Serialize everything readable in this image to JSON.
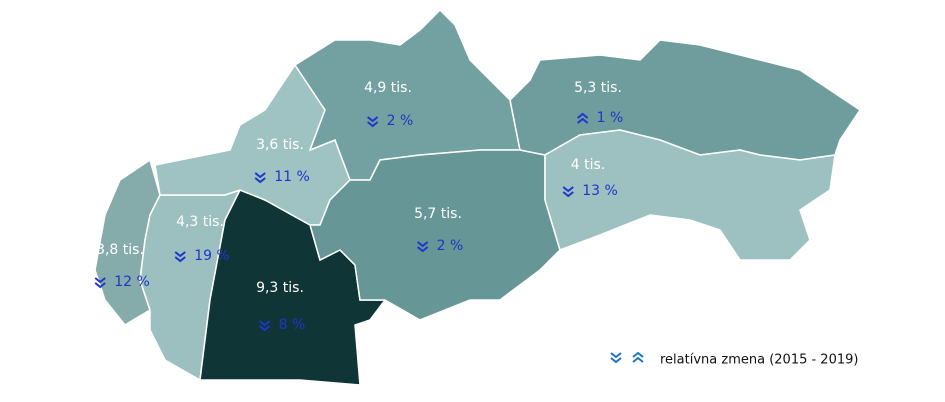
{
  "regions": [
    {
      "value": "3,8 tis.",
      "change": "12 %",
      "direction": "down",
      "color": "#86abab"
    },
    {
      "value": "4,3 tis.",
      "change": "19 %",
      "direction": "down",
      "color": "#9cbfbf"
    },
    {
      "value": "9,3 tis.",
      "change": "8 %",
      "direction": "down",
      "color": "#0f3536"
    },
    {
      "value": "3,6 tis.",
      "change": "11 %",
      "direction": "down",
      "color": "#9fc3c3"
    },
    {
      "value": "4,9 tis.",
      "change": "2 %",
      "direction": "down",
      "color": "#73a0a0"
    },
    {
      "value": "5,7 tis.",
      "change": "2 %",
      "direction": "down",
      "color": "#679696"
    },
    {
      "value": "5,3 tis.",
      "change": "1 %",
      "direction": "up",
      "color": "#6f9c9c"
    },
    {
      "value": "4 tis.",
      "change": "13 %",
      "direction": "down",
      "color": "#9dc1c1"
    }
  ],
  "legend": {
    "label": "relatívna zmena (2015 - 2019)"
  }
}
